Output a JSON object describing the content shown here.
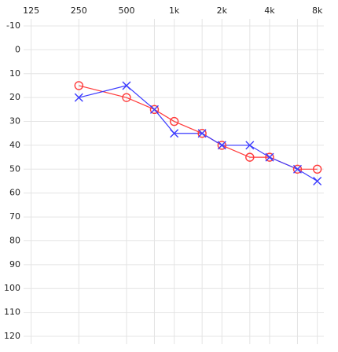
{
  "chart_data": {
    "type": "line",
    "x": [
      250,
      500,
      750,
      1000,
      1500,
      2000,
      3000,
      4000,
      6000,
      8000
    ],
    "series": [
      {
        "color": "#ff3b3b",
        "marker": "o",
        "values": [
          15,
          20,
          25,
          30,
          35,
          40,
          45,
          45,
          50,
          50
        ]
      },
      {
        "color": "#3a3aff",
        "marker": "x",
        "values": [
          20,
          15,
          25,
          35,
          35,
          40,
          40,
          45,
          50,
          55
        ]
      }
    ],
    "xscale": "log",
    "xlim": [
      112,
      8800
    ],
    "xticks": [
      125,
      250,
      500,
      {
        "value": 1000,
        "label": "1k"
      },
      {
        "value": 2000,
        "label": "2k"
      },
      {
        "value": 4000,
        "label": "4k"
      },
      {
        "value": 8000,
        "label": "8k"
      }
    ],
    "x_minor_ticks": [
      750,
      1500,
      3000,
      6000
    ],
    "ylim": [
      -10,
      120
    ],
    "yticks": [
      -10,
      0,
      10,
      20,
      30,
      40,
      50,
      60,
      70,
      80,
      90,
      100,
      110,
      120
    ],
    "y_inverted": true,
    "grid": true
  }
}
